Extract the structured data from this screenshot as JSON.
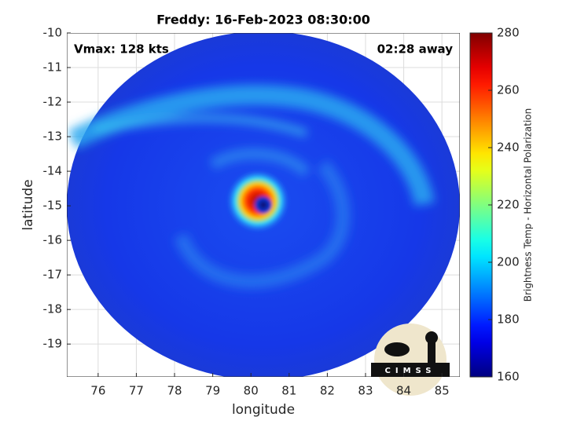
{
  "chart_data": {
    "type": "image",
    "title": "Freddy: 16-Feb-2023 08:30:00",
    "annotations": [
      "Vmax: 128 kts",
      "02:28 away"
    ],
    "x_label": "longitude",
    "y_label": "latitude",
    "xlim": [
      75.18,
      85.47
    ],
    "xticks": [
      76,
      77,
      78,
      79,
      80,
      81,
      82,
      83,
      84,
      85
    ],
    "ylim": [
      -19.95,
      -10
    ],
    "yticks": [
      -10,
      -11,
      -12,
      -13,
      -14,
      -15,
      -16,
      -17,
      -18,
      -19
    ],
    "grid": true,
    "colorbar": {
      "label": "Brightness Temp - Horizontal Polarization",
      "colormap": "jet",
      "clim": [
        160,
        280
      ],
      "ticks": [
        160,
        180,
        200,
        220,
        240,
        260,
        280
      ]
    },
    "logo_text": "CIMSS"
  }
}
